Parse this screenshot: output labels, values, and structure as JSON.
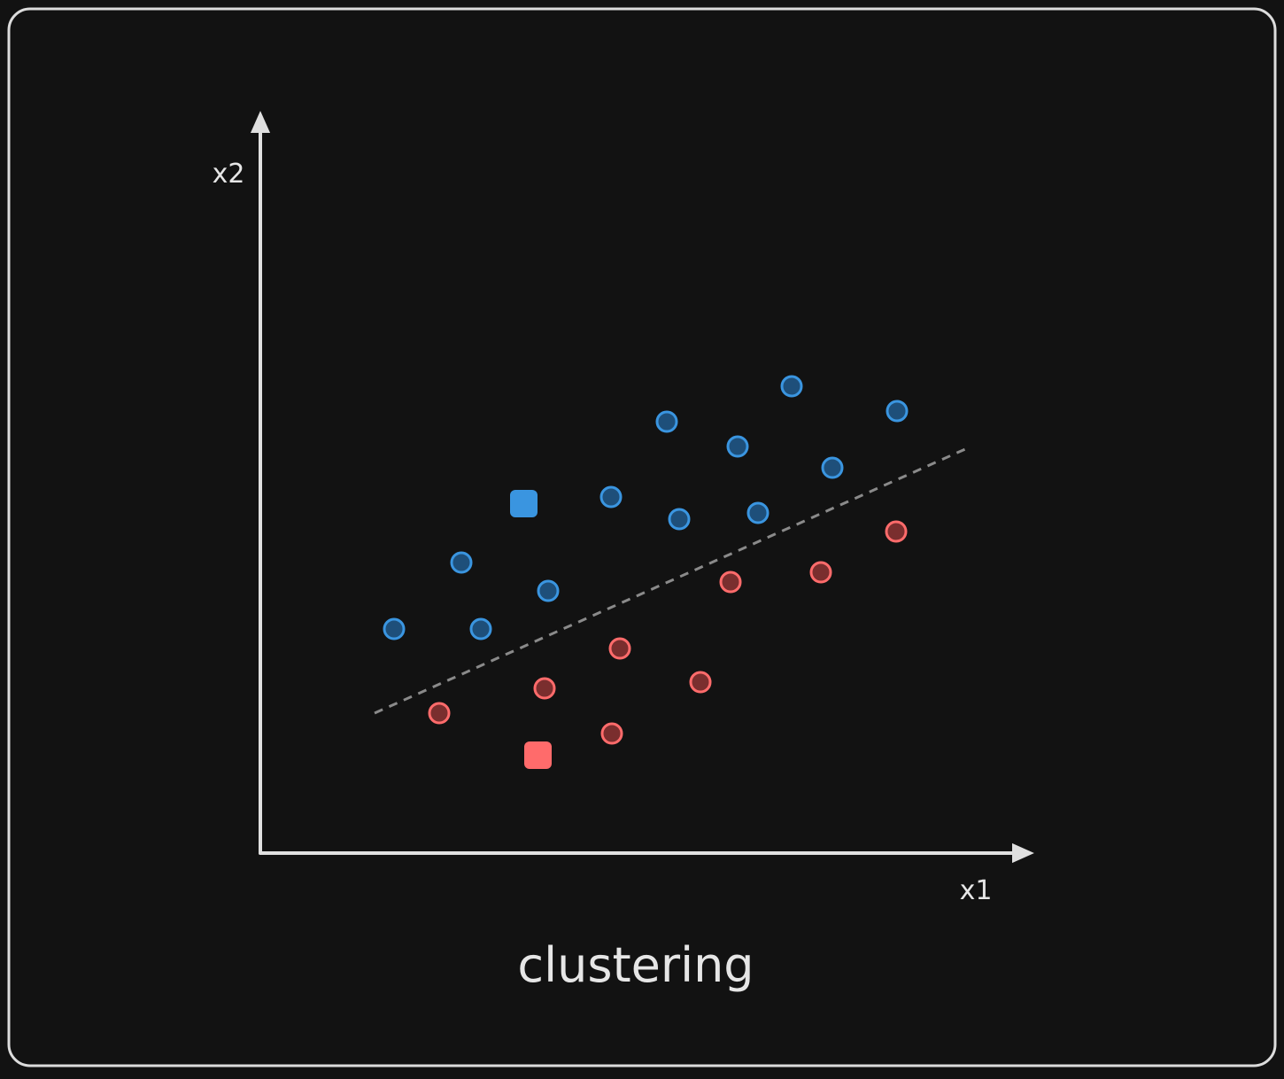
{
  "diagram": {
    "y_axis_label": "x2",
    "x_axis_label": "x1",
    "caption": "clustering"
  }
}
